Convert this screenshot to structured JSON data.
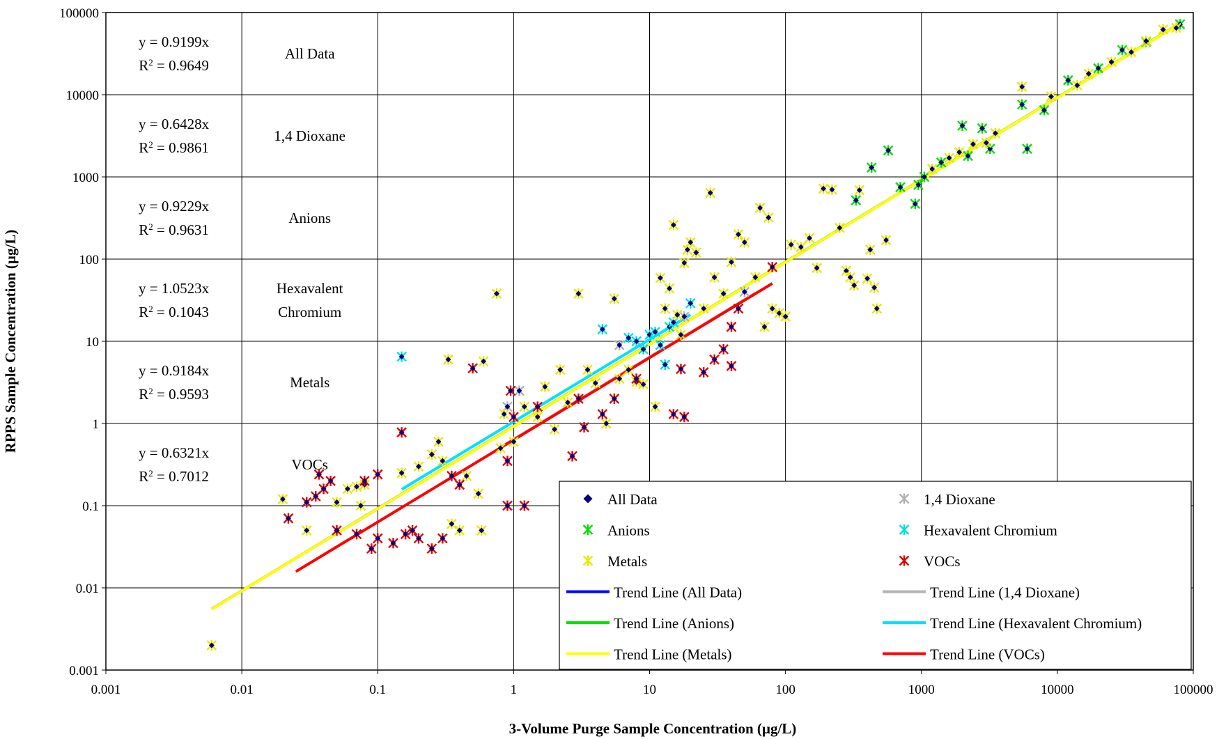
{
  "chart_data": {
    "type": "scatter",
    "xlabel": "3-Volume Purge Sample Concentration (µg/L)",
    "ylabel": "RPPS Sample Concentration (µg/L)",
    "xscale": "log",
    "yscale": "log",
    "xlim": [
      0.001,
      100000
    ],
    "ylim": [
      0.001,
      100000
    ],
    "grid": true,
    "x_ticks": [
      "0.001",
      "0.01",
      "0.1",
      "1",
      "10",
      "100",
      "1000",
      "10000",
      "100000"
    ],
    "y_ticks": [
      "0.001",
      "0.01",
      "0.1",
      "1",
      "10",
      "100",
      "1000",
      "10000",
      "100000"
    ],
    "legend_position": "bottom-right",
    "equations_table": [
      {
        "group": "All Data",
        "group_lines": [
          "All Data"
        ],
        "eq": "y = 0.9199x",
        "r2_label": "R",
        "r2_value": " = 0.9649"
      },
      {
        "group": "1,4 Dioxane",
        "group_lines": [
          "1,4 Dioxane"
        ],
        "eq": "y = 0.6428x",
        "r2_label": "R",
        "r2_value": " = 0.9861"
      },
      {
        "group": "Anions",
        "group_lines": [
          "Anions"
        ],
        "eq": "y = 0.9229x",
        "r2_label": "R",
        "r2_value": " = 0.9631"
      },
      {
        "group": "Hexavalent Chromium",
        "group_lines": [
          "Hexavalent",
          "Chromium"
        ],
        "eq": "y = 1.0523x",
        "r2_label": "R",
        "r2_value": " = 0.1043"
      },
      {
        "group": "Metals",
        "group_lines": [
          "Metals"
        ],
        "eq": "y = 0.9184x",
        "r2_label": "R",
        "r2_value": " = 0.9593"
      },
      {
        "group": "VOCs",
        "group_lines": [
          "VOCs"
        ],
        "eq": "y = 0.6321x",
        "r2_label": "R",
        "r2_value": " = 0.7012"
      }
    ],
    "series": [
      {
        "name": "All Data",
        "marker": "diamond",
        "color": "#000080"
      },
      {
        "name": "1,4 Dioxane",
        "marker": "asterisk",
        "color": "#b0b0b0",
        "points": [
          [
            0.9,
            1.6
          ],
          [
            1.1,
            2.5
          ],
          [
            6,
            9
          ],
          [
            18,
            20
          ],
          [
            50,
            40
          ]
        ]
      },
      {
        "name": "Anions",
        "marker": "asterisk",
        "color": "#00e000",
        "points": [
          [
            330,
            520
          ],
          [
            430,
            1300
          ],
          [
            570,
            2100
          ],
          [
            700,
            750
          ],
          [
            900,
            470
          ],
          [
            950,
            800
          ],
          [
            1050,
            1000
          ],
          [
            2000,
            4200
          ],
          [
            2800,
            3900
          ],
          [
            3200,
            2200
          ],
          [
            5500,
            7600
          ],
          [
            6000,
            2200
          ],
          [
            8000,
            6500
          ],
          [
            12000,
            15000
          ],
          [
            20000,
            21000
          ],
          [
            30000,
            35000
          ],
          [
            45000,
            44000
          ],
          [
            80000,
            72000
          ],
          [
            2200,
            1800
          ],
          [
            1400,
            1500
          ]
        ]
      },
      {
        "name": "Hexavalent Chromium",
        "marker": "asterisk",
        "color": "#00e0e0",
        "points": [
          [
            0.15,
            6.5
          ],
          [
            4.5,
            14
          ],
          [
            7,
            11
          ],
          [
            8,
            10
          ],
          [
            9,
            8
          ],
          [
            10,
            12
          ],
          [
            11,
            13
          ],
          [
            13,
            5.2
          ],
          [
            14,
            15
          ],
          [
            15,
            17
          ],
          [
            20,
            29
          ],
          [
            12,
            9
          ]
        ]
      },
      {
        "name": "Metals",
        "marker": "asterisk",
        "color": "#e8e800",
        "points": [
          [
            0.006,
            0.002
          ],
          [
            0.02,
            0.12
          ],
          [
            0.03,
            0.05
          ],
          [
            0.05,
            0.11
          ],
          [
            0.06,
            0.16
          ],
          [
            0.07,
            0.17
          ],
          [
            0.075,
            0.1
          ],
          [
            0.08,
            0.18
          ],
          [
            0.15,
            0.25
          ],
          [
            0.2,
            0.3
          ],
          [
            0.25,
            0.42
          ],
          [
            0.28,
            0.6
          ],
          [
            0.3,
            0.35
          ],
          [
            0.33,
            6
          ],
          [
            0.35,
            0.06
          ],
          [
            0.4,
            0.05
          ],
          [
            0.45,
            0.23
          ],
          [
            0.55,
            0.14
          ],
          [
            0.58,
            0.05
          ],
          [
            0.6,
            5.7
          ],
          [
            0.75,
            38
          ],
          [
            0.8,
            0.5
          ],
          [
            0.85,
            1.3
          ],
          [
            1.0,
            0.6
          ],
          [
            1.2,
            1.6
          ],
          [
            1.5,
            1.2
          ],
          [
            1.7,
            2.8
          ],
          [
            2.0,
            0.85
          ],
          [
            2.2,
            4.5
          ],
          [
            2.5,
            1.8
          ],
          [
            3.0,
            38
          ],
          [
            3.5,
            4.5
          ],
          [
            4.0,
            3.1
          ],
          [
            4.8,
            1.0
          ],
          [
            5.5,
            33
          ],
          [
            6,
            3.5
          ],
          [
            7,
            4.5
          ],
          [
            8,
            3.2
          ],
          [
            9,
            3.0
          ],
          [
            11,
            1.6
          ],
          [
            12,
            59
          ],
          [
            13,
            25
          ],
          [
            14,
            44
          ],
          [
            15,
            260
          ],
          [
            16,
            21
          ],
          [
            17,
            12
          ],
          [
            18,
            90
          ],
          [
            19,
            130
          ],
          [
            20,
            160
          ],
          [
            22,
            120
          ],
          [
            25,
            25
          ],
          [
            28,
            640
          ],
          [
            30,
            60
          ],
          [
            35,
            38
          ],
          [
            40,
            92
          ],
          [
            45,
            200
          ],
          [
            50,
            160
          ],
          [
            60,
            60
          ],
          [
            65,
            420
          ],
          [
            70,
            15
          ],
          [
            75,
            320
          ],
          [
            80,
            25
          ],
          [
            90,
            22
          ],
          [
            100,
            20
          ],
          [
            110,
            150
          ],
          [
            130,
            140
          ],
          [
            150,
            180
          ],
          [
            170,
            78
          ],
          [
            190,
            720
          ],
          [
            220,
            700
          ],
          [
            250,
            240
          ],
          [
            280,
            72
          ],
          [
            300,
            60
          ],
          [
            320,
            48
          ],
          [
            350,
            690
          ],
          [
            400,
            58
          ],
          [
            420,
            130
          ],
          [
            450,
            45
          ],
          [
            470,
            25
          ],
          [
            550,
            170
          ],
          [
            1600,
            1700
          ],
          [
            1900,
            2000
          ],
          [
            2400,
            2500
          ],
          [
            3500,
            3400
          ],
          [
            5500,
            12500
          ],
          [
            9000,
            9500
          ],
          [
            14000,
            13000
          ],
          [
            17000,
            18000
          ],
          [
            25000,
            25000
          ],
          [
            35000,
            33000
          ],
          [
            45000,
            45000
          ],
          [
            60000,
            62000
          ],
          [
            75000,
            65000
          ],
          [
            3000,
            2600
          ],
          [
            1200,
            1250
          ]
        ]
      },
      {
        "name": "VOCs",
        "marker": "asterisk",
        "color": "#e00000",
        "points": [
          [
            0.022,
            0.07
          ],
          [
            0.03,
            0.11
          ],
          [
            0.035,
            0.13
          ],
          [
            0.037,
            0.24
          ],
          [
            0.04,
            0.16
          ],
          [
            0.045,
            0.2
          ],
          [
            0.05,
            0.05
          ],
          [
            0.07,
            0.045
          ],
          [
            0.08,
            0.2
          ],
          [
            0.09,
            0.03
          ],
          [
            0.1,
            0.04
          ],
          [
            0.1,
            0.24
          ],
          [
            0.13,
            0.035
          ],
          [
            0.15,
            0.78
          ],
          [
            0.16,
            0.045
          ],
          [
            0.18,
            0.05
          ],
          [
            0.2,
            0.04
          ],
          [
            0.25,
            0.03
          ],
          [
            0.3,
            0.04
          ],
          [
            0.35,
            0.23
          ],
          [
            0.4,
            0.18
          ],
          [
            0.5,
            4.7
          ],
          [
            0.9,
            0.1
          ],
          [
            0.9,
            0.35
          ],
          [
            0.95,
            2.5
          ],
          [
            1.0,
            1.2
          ],
          [
            1.2,
            0.1
          ],
          [
            1.5,
            1.6
          ],
          [
            2.7,
            0.4
          ],
          [
            3.0,
            2.0
          ],
          [
            3.3,
            0.9
          ],
          [
            4.5,
            1.3
          ],
          [
            5.5,
            2.0
          ],
          [
            8,
            3.5
          ],
          [
            15,
            1.3
          ],
          [
            17,
            4.6
          ],
          [
            18,
            1.2
          ],
          [
            25,
            4.2
          ],
          [
            30,
            6
          ],
          [
            35,
            8
          ],
          [
            40,
            5
          ],
          [
            40,
            15
          ],
          [
            45,
            25
          ],
          [
            80,
            80
          ]
        ]
      }
    ],
    "trend_lines": [
      {
        "name": "Trend Line (All Data)",
        "color": "#0000ff",
        "slope": 0.9199,
        "x_range": [
          0.006,
          80000
        ]
      },
      {
        "name": "Trend Line (1,4 Dioxane)",
        "color": "#b4b4b4",
        "slope": 0.6428,
        "x_range": [
          0.8,
          60
        ]
      },
      {
        "name": "Trend Line (Anions)",
        "color": "#00e000",
        "slope": 0.9229,
        "x_range": [
          0.15,
          80000
        ]
      },
      {
        "name": "Trend Line (Hexavalent Chromium)",
        "color": "#00e0ff",
        "slope": 1.0523,
        "x_range": [
          0.15,
          20
        ]
      },
      {
        "name": "Trend Line (Metals)",
        "color": "#ffff00",
        "slope": 0.9184,
        "x_range": [
          0.006,
          80000
        ]
      },
      {
        "name": "Trend Line (VOCs)",
        "color": "#ff0000",
        "slope": 0.6321,
        "x_range": [
          0.025,
          80
        ]
      }
    ],
    "legend": [
      {
        "label": "All Data",
        "kind": "diamond",
        "color": "#000080"
      },
      {
        "label": "1,4 Dioxane",
        "kind": "asterisk",
        "color": "#b0b0b0"
      },
      {
        "label": "Anions",
        "kind": "asterisk",
        "color": "#00e000"
      },
      {
        "label": "Hexavalent Chromium",
        "kind": "asterisk",
        "color": "#00e0e0"
      },
      {
        "label": "Metals",
        "kind": "asterisk",
        "color": "#e8e800"
      },
      {
        "label": "VOCs",
        "kind": "asterisk",
        "color": "#e00000"
      },
      {
        "label": "Trend Line (All Data)",
        "kind": "line",
        "color": "#0000ff"
      },
      {
        "label": "Trend Line (1,4 Dioxane)",
        "kind": "line",
        "color": "#b4b4b4"
      },
      {
        "label": "Trend Line (Anions)",
        "kind": "line",
        "color": "#00e000"
      },
      {
        "label": "Trend Line (Hexavalent Chromium)",
        "kind": "line",
        "color": "#00e0ff"
      },
      {
        "label": "Trend Line (Metals)",
        "kind": "line",
        "color": "#ffff00"
      },
      {
        "label": "Trend Line (VOCs)",
        "kind": "line",
        "color": "#ff0000"
      }
    ]
  }
}
